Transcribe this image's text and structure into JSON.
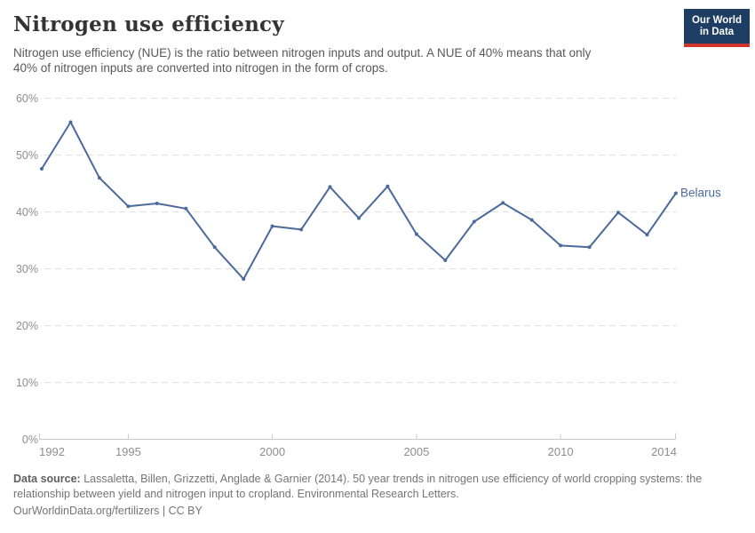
{
  "header": {
    "title": "Nitrogen use efficiency",
    "subtitle_lines": [
      "Nitrogen use efficiency (NUE) is the ratio between nitrogen inputs and output. A NUE of 40% means that only",
      "40% of nitrogen inputs are converted into nitrogen in the form of crops."
    ]
  },
  "logo": {
    "line1": "Our World",
    "line2": "in Data",
    "bg_color": "#1d3d63",
    "bar_color": "#d0342c"
  },
  "chart_data": {
    "type": "line",
    "title": "Nitrogen use efficiency",
    "xlabel": "",
    "ylabel": "",
    "xlim": [
      1992,
      2014
    ],
    "ylim": [
      0,
      60
    ],
    "y_ticks": [
      0,
      10,
      20,
      30,
      40,
      50,
      60
    ],
    "x_ticks": [
      1992,
      1995,
      2000,
      2005,
      2010,
      2014
    ],
    "grid": "horizontal-dashed",
    "legend_position": "end-of-line",
    "colors": {
      "line": "#4c6a9c",
      "grid": "#dddddd",
      "axis": "#cccccc",
      "tick_text": "#8e8e8e"
    },
    "series": [
      {
        "name": "Belarus",
        "color": "#4c6a9c",
        "x": [
          1992,
          1993,
          1994,
          1995,
          1996,
          1997,
          1998,
          1999,
          2000,
          2001,
          2002,
          2003,
          2004,
          2005,
          2006,
          2007,
          2008,
          2009,
          2010,
          2011,
          2012,
          2013,
          2014
        ],
        "values": [
          47.6,
          55.8,
          46.0,
          41.0,
          41.5,
          40.6,
          33.8,
          28.2,
          37.5,
          36.9,
          44.4,
          38.9,
          44.5,
          36.1,
          31.5,
          38.3,
          41.6,
          38.6,
          34.1,
          33.8,
          39.9,
          36.0,
          43.3
        ]
      }
    ]
  },
  "footer": {
    "source_label": "Data source:",
    "source_text": "Lassaletta, Billen, Grizzetti, Anglade & Garnier (2014). 50 year trends in nitrogen use efficiency of world cropping systems: the relationship between yield and nitrogen input to cropland. Environmental Research Letters.",
    "link": "OurWorldinData.org/fertilizers",
    "separator": "|",
    "license": "CC BY"
  }
}
